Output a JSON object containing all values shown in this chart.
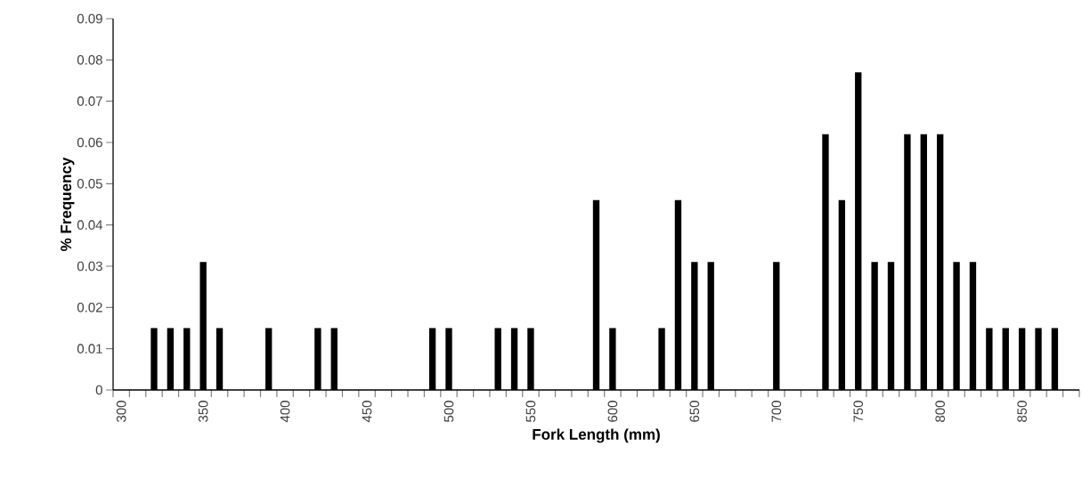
{
  "chart_data": {
    "type": "bar",
    "xlabel": "Fork Length (mm)",
    "ylabel": "% Frequency",
    "categories": [
      "300",
      null,
      null,
      null,
      null,
      "350",
      null,
      null,
      null,
      null,
      "400",
      null,
      null,
      null,
      null,
      "450",
      null,
      null,
      null,
      null,
      "500",
      null,
      null,
      null,
      null,
      "550",
      null,
      null,
      null,
      null,
      "600",
      null,
      null,
      null,
      null,
      "650",
      null,
      null,
      null,
      null,
      "700",
      null,
      null,
      null,
      null,
      "750",
      null,
      null,
      null,
      null,
      "800",
      null,
      null,
      null,
      null,
      "850",
      null,
      null,
      null
    ],
    "values": [
      0,
      0,
      0.015,
      0.015,
      0.015,
      0.031,
      0.015,
      0,
      0,
      0.015,
      0,
      0,
      0.015,
      0.015,
      0,
      0,
      0,
      0,
      0,
      0.015,
      0.015,
      0,
      0,
      0.015,
      0.015,
      0.015,
      0,
      0,
      0,
      0.046,
      0.015,
      0,
      0,
      0.015,
      0.046,
      0.031,
      0.031,
      0,
      0,
      0,
      0.031,
      0,
      0,
      0.062,
      0.046,
      0.077,
      0.031,
      0.031,
      0.062,
      0.062,
      0.062,
      0.031,
      0.031,
      0.015,
      0.015,
      0.015,
      0.015,
      0.015,
      0
    ],
    "color": "#000000",
    "ylim": [
      0,
      0.09
    ],
    "yticks": [
      0,
      0.01,
      0.02,
      0.03,
      0.04,
      0.05,
      0.06,
      0.07,
      0.08,
      0.09
    ]
  }
}
